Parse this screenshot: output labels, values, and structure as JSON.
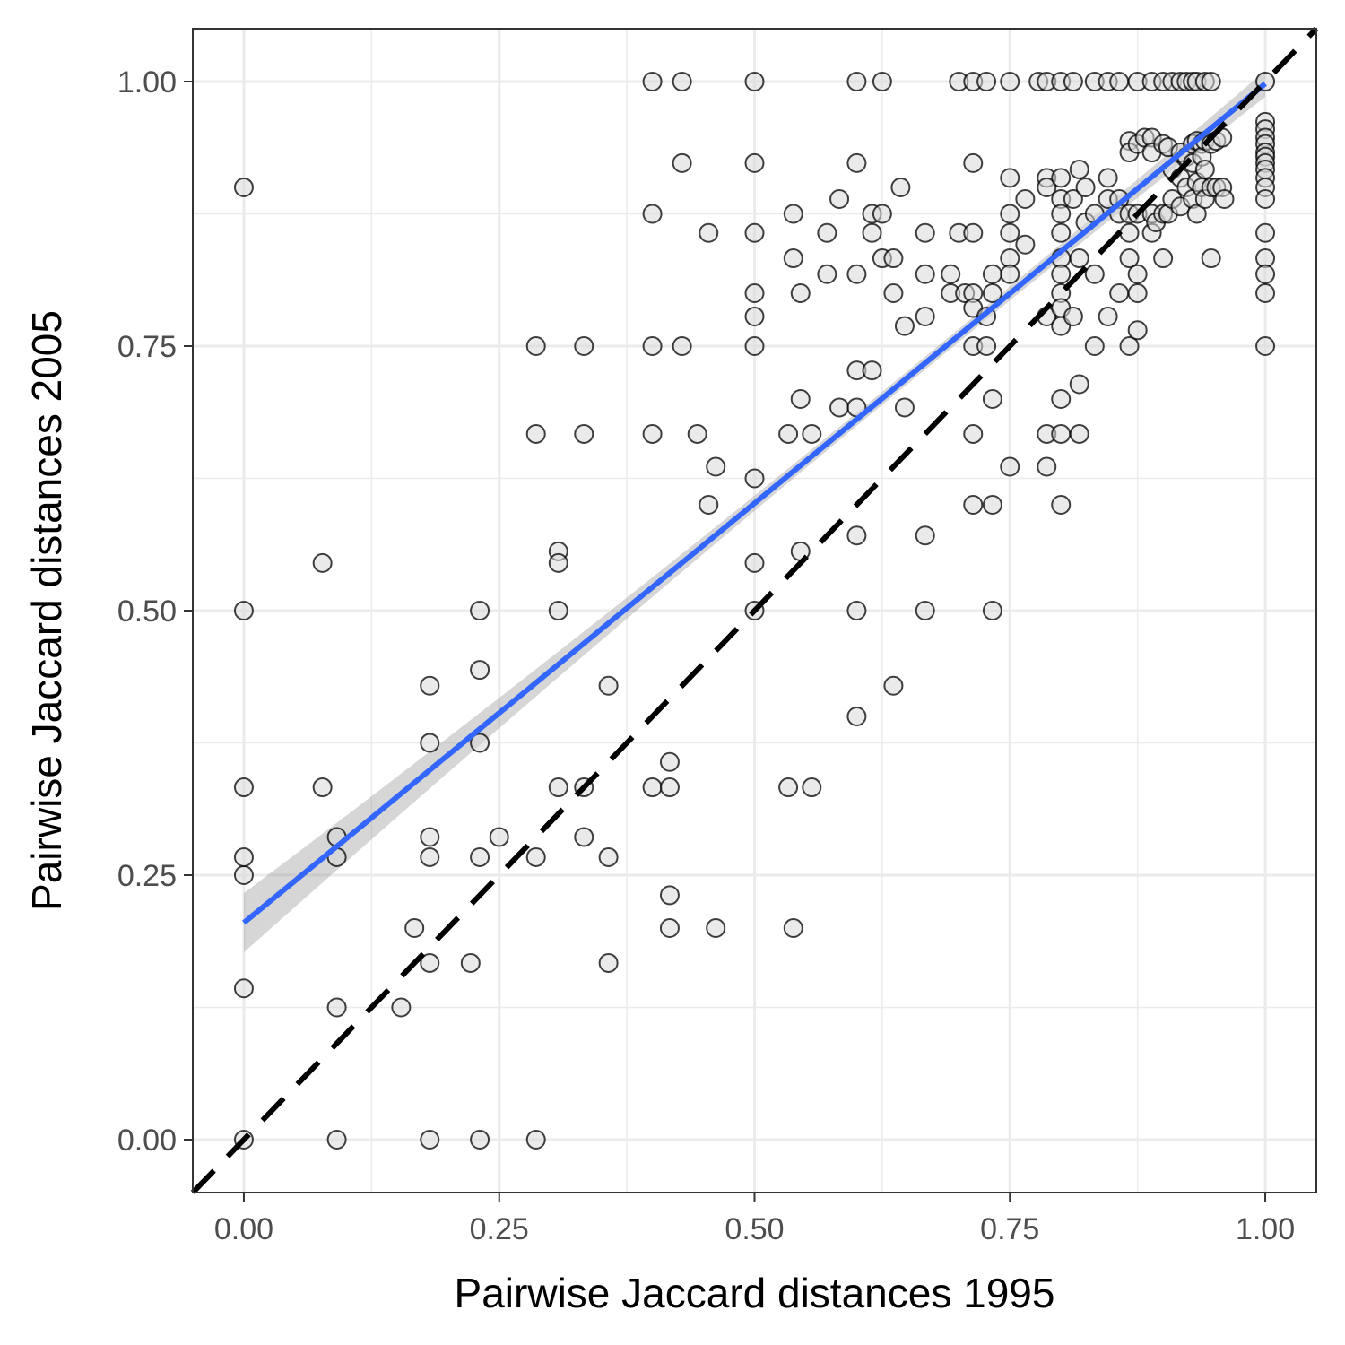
{
  "chart_data": {
    "type": "scatter",
    "xlabel": "Pairwise Jaccard distances 1995",
    "ylabel": "Pairwise Jaccard distances 2005",
    "xlim": [
      -0.05,
      1.05
    ],
    "ylim": [
      -0.05,
      1.05
    ],
    "xticks": [
      0.0,
      0.25,
      0.5,
      0.75,
      1.0
    ],
    "yticks": [
      0.0,
      0.25,
      0.5,
      0.75,
      1.0
    ],
    "xtick_labels": [
      "0.00",
      "0.25",
      "0.50",
      "0.75",
      "1.00"
    ],
    "ytick_labels": [
      "0.00",
      "0.25",
      "0.50",
      "0.75",
      "1.00"
    ],
    "grid": true,
    "points": [
      [
        0.0,
        0.0
      ],
      [
        0.0,
        0.143
      ],
      [
        0.0,
        0.25
      ],
      [
        0.0,
        0.267
      ],
      [
        0.0,
        0.333
      ],
      [
        0.0,
        0.5
      ],
      [
        0.0,
        0.9
      ],
      [
        0.077,
        0.545
      ],
      [
        0.077,
        0.333
      ],
      [
        0.091,
        0.286
      ],
      [
        0.091,
        0.267
      ],
      [
        0.091,
        0.125
      ],
      [
        0.091,
        0.0
      ],
      [
        0.154,
        0.125
      ],
      [
        0.167,
        0.2
      ],
      [
        0.182,
        0.429
      ],
      [
        0.182,
        0.375
      ],
      [
        0.182,
        0.286
      ],
      [
        0.182,
        0.267
      ],
      [
        0.182,
        0.167
      ],
      [
        0.182,
        0.0
      ],
      [
        0.222,
        0.167
      ],
      [
        0.231,
        0.5
      ],
      [
        0.231,
        0.444
      ],
      [
        0.231,
        0.375
      ],
      [
        0.231,
        0.267
      ],
      [
        0.231,
        0.0
      ],
      [
        0.25,
        0.286
      ],
      [
        0.286,
        0.75
      ],
      [
        0.286,
        0.667
      ],
      [
        0.286,
        0.267
      ],
      [
        0.286,
        0.0
      ],
      [
        0.308,
        0.556
      ],
      [
        0.308,
        0.545
      ],
      [
        0.308,
        0.5
      ],
      [
        0.308,
        0.333
      ],
      [
        0.333,
        0.75
      ],
      [
        0.333,
        0.667
      ],
      [
        0.333,
        0.333
      ],
      [
        0.333,
        0.286
      ],
      [
        0.357,
        0.429
      ],
      [
        0.357,
        0.267
      ],
      [
        0.357,
        0.167
      ],
      [
        0.4,
        1.0
      ],
      [
        0.4,
        0.875
      ],
      [
        0.4,
        0.75
      ],
      [
        0.4,
        0.667
      ],
      [
        0.4,
        0.333
      ],
      [
        0.417,
        0.357
      ],
      [
        0.417,
        0.333
      ],
      [
        0.417,
        0.231
      ],
      [
        0.417,
        0.2
      ],
      [
        0.429,
        1.0
      ],
      [
        0.429,
        0.923
      ],
      [
        0.429,
        0.75
      ],
      [
        0.444,
        0.667
      ],
      [
        0.455,
        0.857
      ],
      [
        0.455,
        0.6
      ],
      [
        0.462,
        0.636
      ],
      [
        0.462,
        0.2
      ],
      [
        0.5,
        1.0
      ],
      [
        0.5,
        0.923
      ],
      [
        0.5,
        0.857
      ],
      [
        0.5,
        0.8
      ],
      [
        0.5,
        0.778
      ],
      [
        0.5,
        0.75
      ],
      [
        0.5,
        0.625
      ],
      [
        0.5,
        0.545
      ],
      [
        0.5,
        0.5
      ],
      [
        0.533,
        0.333
      ],
      [
        0.533,
        0.667
      ],
      [
        0.538,
        0.875
      ],
      [
        0.538,
        0.833
      ],
      [
        0.538,
        0.2
      ],
      [
        0.545,
        0.8
      ],
      [
        0.545,
        0.7
      ],
      [
        0.545,
        0.556
      ],
      [
        0.556,
        0.333
      ],
      [
        0.556,
        0.667
      ],
      [
        0.571,
        0.857
      ],
      [
        0.571,
        0.818
      ],
      [
        0.583,
        0.889
      ],
      [
        0.583,
        0.692
      ],
      [
        0.6,
        1.0
      ],
      [
        0.6,
        0.923
      ],
      [
        0.6,
        0.818
      ],
      [
        0.6,
        0.727
      ],
      [
        0.6,
        0.692
      ],
      [
        0.6,
        0.571
      ],
      [
        0.6,
        0.5
      ],
      [
        0.6,
        0.4
      ],
      [
        0.615,
        0.857
      ],
      [
        0.615,
        0.727
      ],
      [
        0.615,
        0.875
      ],
      [
        0.625,
        1.0
      ],
      [
        0.625,
        0.875
      ],
      [
        0.625,
        0.833
      ],
      [
        0.636,
        0.8
      ],
      [
        0.636,
        0.833
      ],
      [
        0.636,
        0.429
      ],
      [
        0.643,
        0.9
      ],
      [
        0.647,
        0.769
      ],
      [
        0.647,
        0.692
      ],
      [
        0.667,
        0.857
      ],
      [
        0.667,
        0.818
      ],
      [
        0.667,
        0.778
      ],
      [
        0.667,
        0.571
      ],
      [
        0.667,
        0.5
      ],
      [
        0.692,
        0.818
      ],
      [
        0.692,
        0.8
      ],
      [
        0.7,
        1.0
      ],
      [
        0.7,
        0.857
      ],
      [
        0.706,
        0.8
      ],
      [
        0.714,
        1.0
      ],
      [
        0.714,
        0.923
      ],
      [
        0.714,
        0.857
      ],
      [
        0.714,
        0.8
      ],
      [
        0.714,
        0.786
      ],
      [
        0.714,
        0.75
      ],
      [
        0.714,
        0.667
      ],
      [
        0.714,
        0.6
      ],
      [
        0.727,
        1.0
      ],
      [
        0.727,
        0.778
      ],
      [
        0.727,
        0.75
      ],
      [
        0.733,
        0.818
      ],
      [
        0.733,
        0.8
      ],
      [
        0.733,
        0.7
      ],
      [
        0.733,
        0.6
      ],
      [
        0.733,
        0.5
      ],
      [
        0.75,
        1.0
      ],
      [
        0.75,
        0.909
      ],
      [
        0.75,
        0.875
      ],
      [
        0.75,
        0.857
      ],
      [
        0.75,
        0.833
      ],
      [
        0.75,
        0.818
      ],
      [
        0.75,
        0.636
      ],
      [
        0.765,
        0.846
      ],
      [
        0.765,
        0.889
      ],
      [
        0.778,
        1.0
      ],
      [
        0.786,
        1.0
      ],
      [
        0.786,
        0.909
      ],
      [
        0.786,
        0.9
      ],
      [
        0.786,
        0.778
      ],
      [
        0.786,
        0.667
      ],
      [
        0.786,
        0.636
      ],
      [
        0.8,
        1.0
      ],
      [
        0.8,
        0.909
      ],
      [
        0.8,
        0.889
      ],
      [
        0.8,
        0.875
      ],
      [
        0.8,
        0.857
      ],
      [
        0.8,
        0.833
      ],
      [
        0.8,
        0.818
      ],
      [
        0.8,
        0.8
      ],
      [
        0.8,
        0.786
      ],
      [
        0.8,
        0.769
      ],
      [
        0.8,
        0.7
      ],
      [
        0.8,
        0.667
      ],
      [
        0.8,
        0.6
      ],
      [
        0.812,
        1.0
      ],
      [
        0.812,
        0.889
      ],
      [
        0.812,
        0.778
      ],
      [
        0.818,
        0.917
      ],
      [
        0.818,
        0.833
      ],
      [
        0.818,
        0.714
      ],
      [
        0.818,
        0.667
      ],
      [
        0.824,
        0.9
      ],
      [
        0.824,
        0.867
      ],
      [
        0.833,
        1.0
      ],
      [
        0.833,
        0.875
      ],
      [
        0.833,
        0.818
      ],
      [
        0.833,
        0.75
      ],
      [
        0.846,
        1.0
      ],
      [
        0.846,
        0.909
      ],
      [
        0.846,
        0.889
      ],
      [
        0.846,
        0.778
      ],
      [
        0.857,
        1.0
      ],
      [
        0.857,
        0.889
      ],
      [
        0.857,
        0.875
      ],
      [
        0.857,
        0.8
      ],
      [
        0.867,
        0.944
      ],
      [
        0.867,
        0.933
      ],
      [
        0.867,
        0.875
      ],
      [
        0.867,
        0.857
      ],
      [
        0.867,
        0.833
      ],
      [
        0.867,
        0.75
      ],
      [
        0.875,
        1.0
      ],
      [
        0.875,
        0.941
      ],
      [
        0.875,
        0.875
      ],
      [
        0.875,
        0.818
      ],
      [
        0.875,
        0.8
      ],
      [
        0.875,
        0.765
      ],
      [
        0.882,
        0.947
      ],
      [
        0.889,
        1.0
      ],
      [
        0.889,
        0.947
      ],
      [
        0.889,
        0.933
      ],
      [
        0.889,
        0.875
      ],
      [
        0.889,
        0.857
      ],
      [
        0.893,
        0.867
      ],
      [
        0.9,
        1.0
      ],
      [
        0.9,
        0.941
      ],
      [
        0.9,
        0.875
      ],
      [
        0.9,
        0.833
      ],
      [
        0.905,
        0.938
      ],
      [
        0.905,
        0.875
      ],
      [
        0.909,
        1.0
      ],
      [
        0.909,
        0.917
      ],
      [
        0.909,
        0.889
      ],
      [
        0.917,
        1.0
      ],
      [
        0.917,
        0.933
      ],
      [
        0.917,
        0.909
      ],
      [
        0.917,
        0.882
      ],
      [
        0.923,
        1.0
      ],
      [
        0.923,
        0.929
      ],
      [
        0.923,
        0.9
      ],
      [
        0.929,
        1.0
      ],
      [
        0.929,
        0.941
      ],
      [
        0.929,
        0.923
      ],
      [
        0.929,
        0.889
      ],
      [
        0.933,
        1.0
      ],
      [
        0.933,
        0.944
      ],
      [
        0.933,
        0.905
      ],
      [
        0.933,
        0.875
      ],
      [
        0.938,
        0.941
      ],
      [
        0.938,
        0.929
      ],
      [
        0.938,
        0.9
      ],
      [
        0.941,
        1.0
      ],
      [
        0.941,
        0.944
      ],
      [
        0.941,
        0.917
      ],
      [
        0.941,
        0.889
      ],
      [
        0.947,
        1.0
      ],
      [
        0.947,
        0.941
      ],
      [
        0.947,
        0.9
      ],
      [
        0.947,
        0.833
      ],
      [
        0.952,
        0.944
      ],
      [
        0.952,
        0.9
      ],
      [
        0.958,
        0.947
      ],
      [
        0.958,
        0.9
      ],
      [
        0.96,
        0.889
      ],
      [
        1.0,
        1.0
      ],
      [
        1.0,
        0.962
      ],
      [
        1.0,
        0.955
      ],
      [
        1.0,
        0.947
      ],
      [
        1.0,
        0.941
      ],
      [
        1.0,
        0.933
      ],
      [
        1.0,
        0.929
      ],
      [
        1.0,
        0.923
      ],
      [
        1.0,
        0.917
      ],
      [
        1.0,
        0.909
      ],
      [
        1.0,
        0.9
      ],
      [
        1.0,
        0.889
      ],
      [
        1.0,
        0.857
      ],
      [
        1.0,
        0.833
      ],
      [
        1.0,
        0.818
      ],
      [
        1.0,
        0.8
      ],
      [
        1.0,
        0.75
      ]
    ],
    "fit_line": {
      "x": [
        0.0,
        1.0
      ],
      "y": [
        0.205,
        0.998
      ],
      "color": "#3366FF"
    },
    "identity_line": {
      "x": [
        -0.05,
        1.05
      ],
      "y": [
        -0.05,
        1.05
      ],
      "color": "#000000"
    }
  }
}
